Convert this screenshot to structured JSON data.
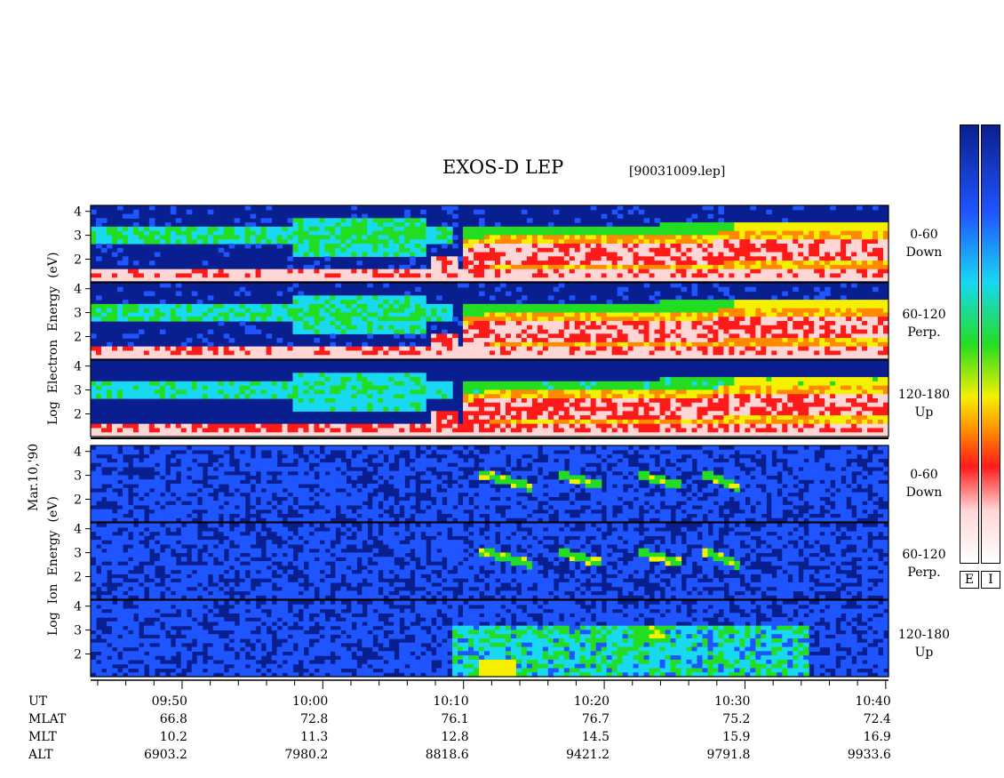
{
  "header": {
    "title": "EXOS-D LEP",
    "file_id": "[90031009.lep]"
  },
  "axis_labels": {
    "electron": [
      "Log",
      "Electron",
      "Energy",
      "(eV)"
    ],
    "ion": [
      "Log",
      "Ion",
      "Energy",
      "(eV)"
    ],
    "date": "Mar.10,'90"
  },
  "panel_labels": [
    {
      "range": "0-60",
      "dir": "Down"
    },
    {
      "range": "60-120",
      "dir": "Perp."
    },
    {
      "range": "120-180",
      "dir": "Up"
    },
    {
      "range": "0-60",
      "dir": "Down"
    },
    {
      "range": "60-120",
      "dir": "Perp."
    },
    {
      "range": "120-180",
      "dir": "Up"
    }
  ],
  "colorbar_labels": [
    "E",
    "I"
  ],
  "time_table": {
    "row_names": [
      "UT",
      "MLAT",
      "MLT",
      "ALT"
    ],
    "columns": [
      {
        "UT": "09:50",
        "MLAT": "66.8",
        "MLT": "10.2",
        "ALT": "6903.2"
      },
      {
        "UT": "10:00",
        "MLAT": "72.8",
        "MLT": "11.3",
        "ALT": "7980.2"
      },
      {
        "UT": "10:10",
        "MLAT": "76.1",
        "MLT": "12.8",
        "ALT": "8818.6"
      },
      {
        "UT": "10:20",
        "MLAT": "76.7",
        "MLT": "14.5",
        "ALT": "9421.2"
      },
      {
        "UT": "10:30",
        "MLAT": "75.2",
        "MLT": "15.9",
        "ALT": "9791.8"
      },
      {
        "UT": "10:40",
        "MLAT": "72.4",
        "MLT": "16.9",
        "ALT": "9933.6"
      }
    ]
  },
  "chart_data": {
    "type": "heatmap",
    "title": "EXOS-D LEP",
    "x_unit": "UT",
    "x_ticks": [
      "09:50",
      "10:00",
      "10:10",
      "10:20",
      "10:30",
      "10:40"
    ],
    "x_range_minutes_approx": [
      "09:43",
      "10:40"
    ],
    "y_tick_labels": [
      "2",
      "3",
      "4"
    ],
    "y_label_electron": "Log Electron Energy (eV)",
    "y_label_ion": "Log Ion Energy (eV)",
    "panels": [
      {
        "species": "electron",
        "pitch_angle": "0-60",
        "direction": "Down"
      },
      {
        "species": "electron",
        "pitch_angle": "60-120",
        "direction": "Perp."
      },
      {
        "species": "electron",
        "pitch_angle": "120-180",
        "direction": "Up"
      },
      {
        "species": "ion",
        "pitch_angle": "0-60",
        "direction": "Down"
      },
      {
        "species": "ion",
        "pitch_angle": "60-120",
        "direction": "Perp."
      },
      {
        "species": "ion",
        "pitch_angle": "120-180",
        "direction": "Up"
      }
    ],
    "colormap": [
      "#0a1f8f",
      "#1f55ff",
      "#18d8f2",
      "#22dd22",
      "#f4f000",
      "#ff8a00",
      "#ff1a1a",
      "#ffd6d6",
      "#ffffff"
    ]
  }
}
